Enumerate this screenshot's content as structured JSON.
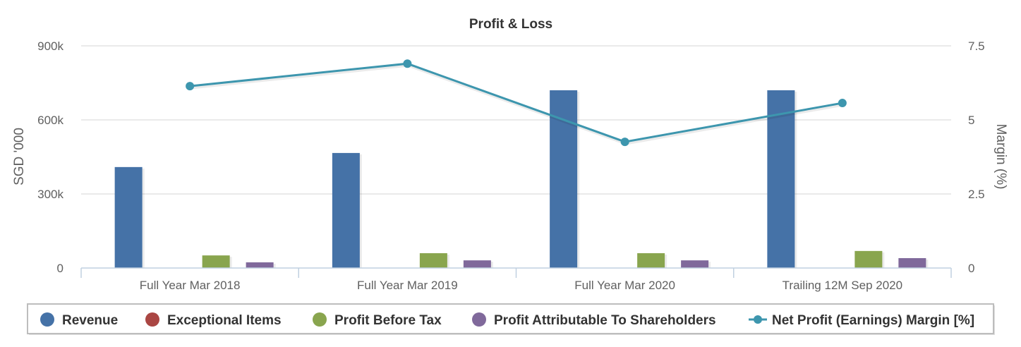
{
  "chart_data": {
    "type": "bar",
    "title": "Profit & Loss",
    "categories": [
      "Full Year Mar 2018",
      "Full Year Mar 2019",
      "Full Year Mar 2020",
      "Trailing 12M Sep 2020"
    ],
    "xlabel": "",
    "ylabel": "SGD '000",
    "ylabel_right": "Margin (%)",
    "ylim": [
      0,
      900000
    ],
    "ylim_right": [
      0,
      7.5
    ],
    "yticks": [
      {
        "value": 0,
        "label": "0"
      },
      {
        "value": 300000,
        "label": "300k"
      },
      {
        "value": 600000,
        "label": "600k"
      },
      {
        "value": 900000,
        "label": "900k"
      }
    ],
    "yticks_right": [
      {
        "value": 0,
        "label": "0"
      },
      {
        "value": 2.5,
        "label": "2.5"
      },
      {
        "value": 5,
        "label": "5"
      },
      {
        "value": 7.5,
        "label": "7.5"
      }
    ],
    "grid": true,
    "legend_position": "bottom",
    "series": [
      {
        "name": "Revenue",
        "type": "bar",
        "axis": "left",
        "color": "#4572a7",
        "values": [
          409000,
          466000,
          720000,
          720000
        ]
      },
      {
        "name": "Exceptional Items",
        "type": "bar",
        "axis": "left",
        "color": "#aa4643",
        "values": [
          0,
          0,
          0,
          0
        ]
      },
      {
        "name": "Profit Before Tax",
        "type": "bar",
        "axis": "left",
        "color": "#89a54e",
        "values": [
          51000,
          60000,
          60000,
          69000
        ]
      },
      {
        "name": "Profit Attributable To Shareholders",
        "type": "bar",
        "axis": "left",
        "color": "#80699b",
        "values": [
          23000,
          31000,
          31000,
          40000
        ]
      },
      {
        "name": "Net Profit (Earnings) Margin [%]",
        "type": "line",
        "axis": "right",
        "color": "#3d96ae",
        "values": [
          6.14,
          6.9,
          4.26,
          5.57
        ]
      }
    ]
  }
}
